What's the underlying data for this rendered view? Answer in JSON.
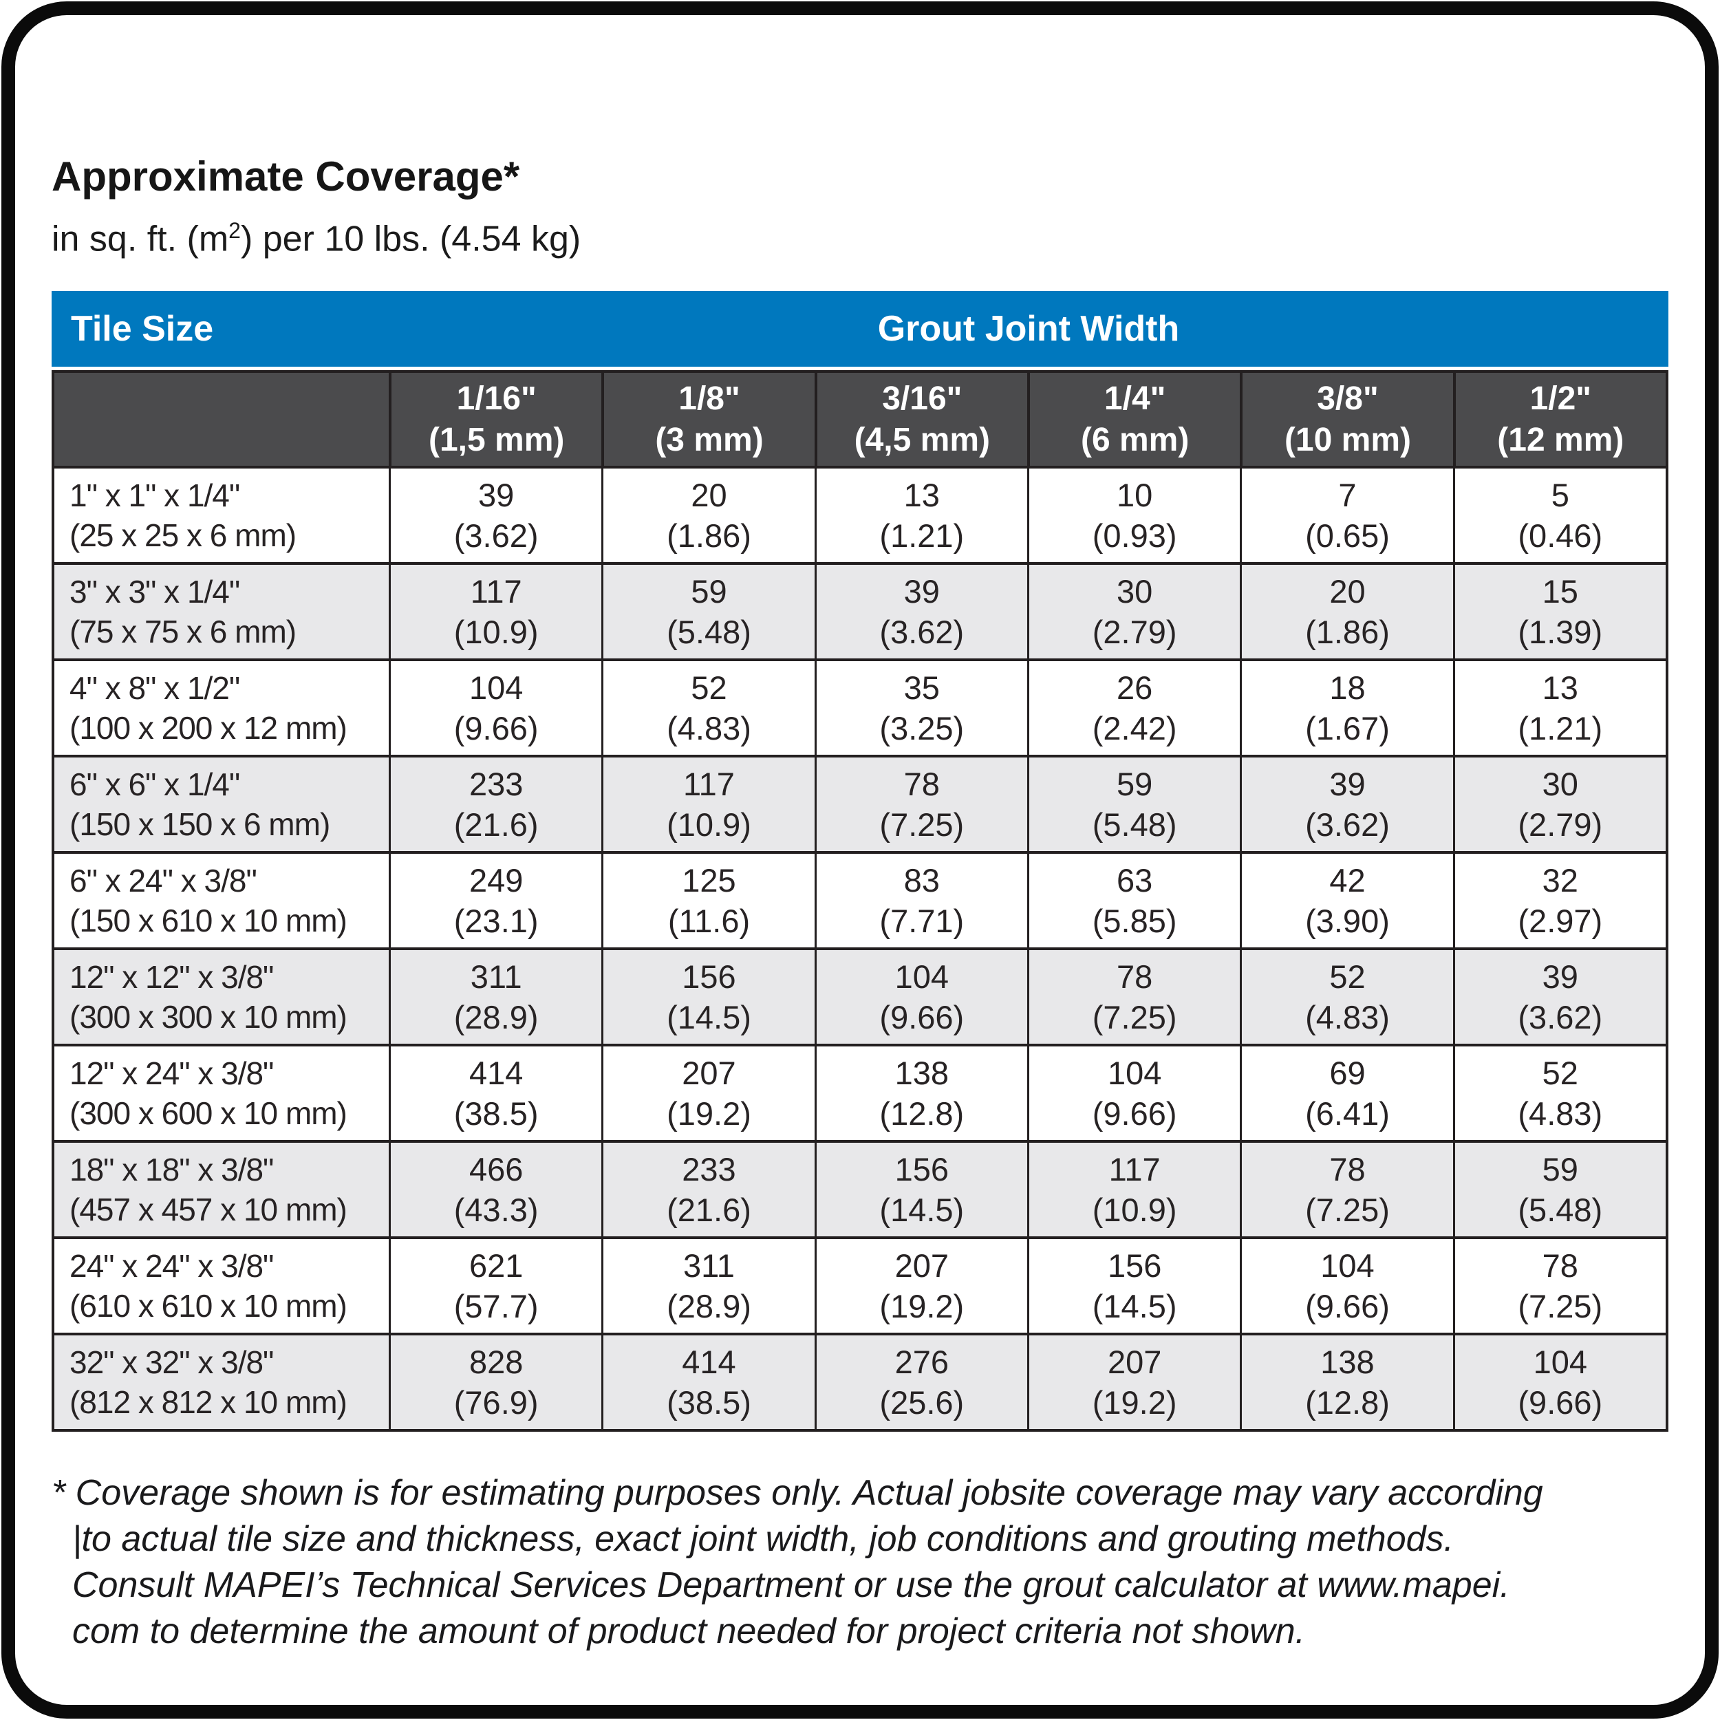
{
  "page": {
    "title": "Approximate Coverage*",
    "subtitle": {
      "prefix": "in sq. ft. (m",
      "sup": "2",
      "suffix": ") per 10 lbs. (4.54 kg)"
    }
  },
  "colors": {
    "accent_blue": "#0078BE",
    "subheader_gray": "#4B4B4D",
    "row_alt_gray": "#E8E8EA",
    "grid_line": "#231F20"
  },
  "table": {
    "corner_label": "Tile Size",
    "group_header": "Grout Joint Width",
    "columns": [
      {
        "inches": "1/16\"",
        "metric": "(1,5 mm)"
      },
      {
        "inches": "1/8\"",
        "metric": "(3 mm)"
      },
      {
        "inches": "3/16\"",
        "metric": "(4,5 mm)"
      },
      {
        "inches": "1/4\"",
        "metric": "(6 mm)"
      },
      {
        "inches": "3/8\"",
        "metric": "(10 mm)"
      },
      {
        "inches": "1/2\"",
        "metric": "(12 mm)"
      }
    ],
    "rows": [
      {
        "tile": "1\" x 1\" x 1/4\"",
        "tile_metric": "(25 x 25 x 6 mm)",
        "cells": [
          [
            "39",
            "(3.62)"
          ],
          [
            "20",
            "(1.86)"
          ],
          [
            "13",
            "(1.21)"
          ],
          [
            "10",
            "(0.93)"
          ],
          [
            "7",
            "(0.65)"
          ],
          [
            "5",
            "(0.46)"
          ]
        ]
      },
      {
        "tile": "3\" x 3\" x 1/4\"",
        "tile_metric": "(75 x 75 x 6 mm)",
        "cells": [
          [
            "117",
            "(10.9)"
          ],
          [
            "59",
            "(5.48)"
          ],
          [
            "39",
            "(3.62)"
          ],
          [
            "30",
            "(2.79)"
          ],
          [
            "20",
            "(1.86)"
          ],
          [
            "15",
            "(1.39)"
          ]
        ]
      },
      {
        "tile": "4\" x 8\" x 1/2\"",
        "tile_metric": "(100 x 200 x 12 mm)",
        "cells": [
          [
            "104",
            "(9.66)"
          ],
          [
            "52",
            "(4.83)"
          ],
          [
            "35",
            "(3.25)"
          ],
          [
            "26",
            "(2.42)"
          ],
          [
            "18",
            "(1.67)"
          ],
          [
            "13",
            "(1.21)"
          ]
        ]
      },
      {
        "tile": "6\" x 6\" x 1/4\"",
        "tile_metric": "(150 x 150 x 6 mm)",
        "cells": [
          [
            "233",
            "(21.6)"
          ],
          [
            "117",
            "(10.9)"
          ],
          [
            "78",
            "(7.25)"
          ],
          [
            "59",
            "(5.48)"
          ],
          [
            "39",
            "(3.62)"
          ],
          [
            "30",
            "(2.79)"
          ]
        ]
      },
      {
        "tile": "6\" x 24\" x 3/8\"",
        "tile_metric": "(150 x 610 x 10 mm)",
        "cells": [
          [
            "249",
            "(23.1)"
          ],
          [
            "125",
            "(11.6)"
          ],
          [
            "83",
            "(7.71)"
          ],
          [
            "63",
            "(5.85)"
          ],
          [
            "42",
            "(3.90)"
          ],
          [
            "32",
            "(2.97)"
          ]
        ]
      },
      {
        "tile": "12\" x 12\" x 3/8\"",
        "tile_metric": "(300 x 300 x 10 mm)",
        "cells": [
          [
            "311",
            "(28.9)"
          ],
          [
            "156",
            "(14.5)"
          ],
          [
            "104",
            "(9.66)"
          ],
          [
            "78",
            "(7.25)"
          ],
          [
            "52",
            "(4.83)"
          ],
          [
            "39",
            "(3.62)"
          ]
        ]
      },
      {
        "tile": "12\" x 24\" x 3/8\"",
        "tile_metric": "(300 x 600 x 10 mm)",
        "cells": [
          [
            "414",
            "(38.5)"
          ],
          [
            "207",
            "(19.2)"
          ],
          [
            "138",
            "(12.8)"
          ],
          [
            "104",
            "(9.66)"
          ],
          [
            "69",
            "(6.41)"
          ],
          [
            "52",
            "(4.83)"
          ]
        ]
      },
      {
        "tile": "18\" x 18\" x 3/8\"",
        "tile_metric": "(457 x 457 x 10 mm)",
        "cells": [
          [
            "466",
            "(43.3)"
          ],
          [
            "233",
            "(21.6)"
          ],
          [
            "156",
            "(14.5)"
          ],
          [
            "117",
            "(10.9)"
          ],
          [
            "78",
            "(7.25)"
          ],
          [
            "59",
            "(5.48)"
          ]
        ]
      },
      {
        "tile": "24\" x 24\" x 3/8\"",
        "tile_metric": "(610 x 610 x 10 mm)",
        "cells": [
          [
            "621",
            "(57.7)"
          ],
          [
            "311",
            "(28.9)"
          ],
          [
            "207",
            "(19.2)"
          ],
          [
            "156",
            "(14.5)"
          ],
          [
            "104",
            "(9.66)"
          ],
          [
            "78",
            "(7.25)"
          ]
        ]
      },
      {
        "tile": "32\" x 32\" x 3/8\"",
        "tile_metric": "(812 x 812 x 10 mm)",
        "cells": [
          [
            "828",
            "(76.9)"
          ],
          [
            "414",
            "(38.5)"
          ],
          [
            "276",
            "(25.6)"
          ],
          [
            "207",
            "(19.2)"
          ],
          [
            "138",
            "(12.8)"
          ],
          [
            "104",
            "(9.66)"
          ]
        ]
      }
    ]
  },
  "footnote": {
    "lines": [
      "* Coverage shown is for estimating purposes only. Actual jobsite coverage may vary according",
      "|to actual tile size and thickness, exact joint width, job conditions and grouting methods.",
      "Consult MAPEI’s Technical Services Department or use the grout calculator at www.mapei.",
      "com to determine the amount of product needed for project criteria not shown."
    ]
  }
}
